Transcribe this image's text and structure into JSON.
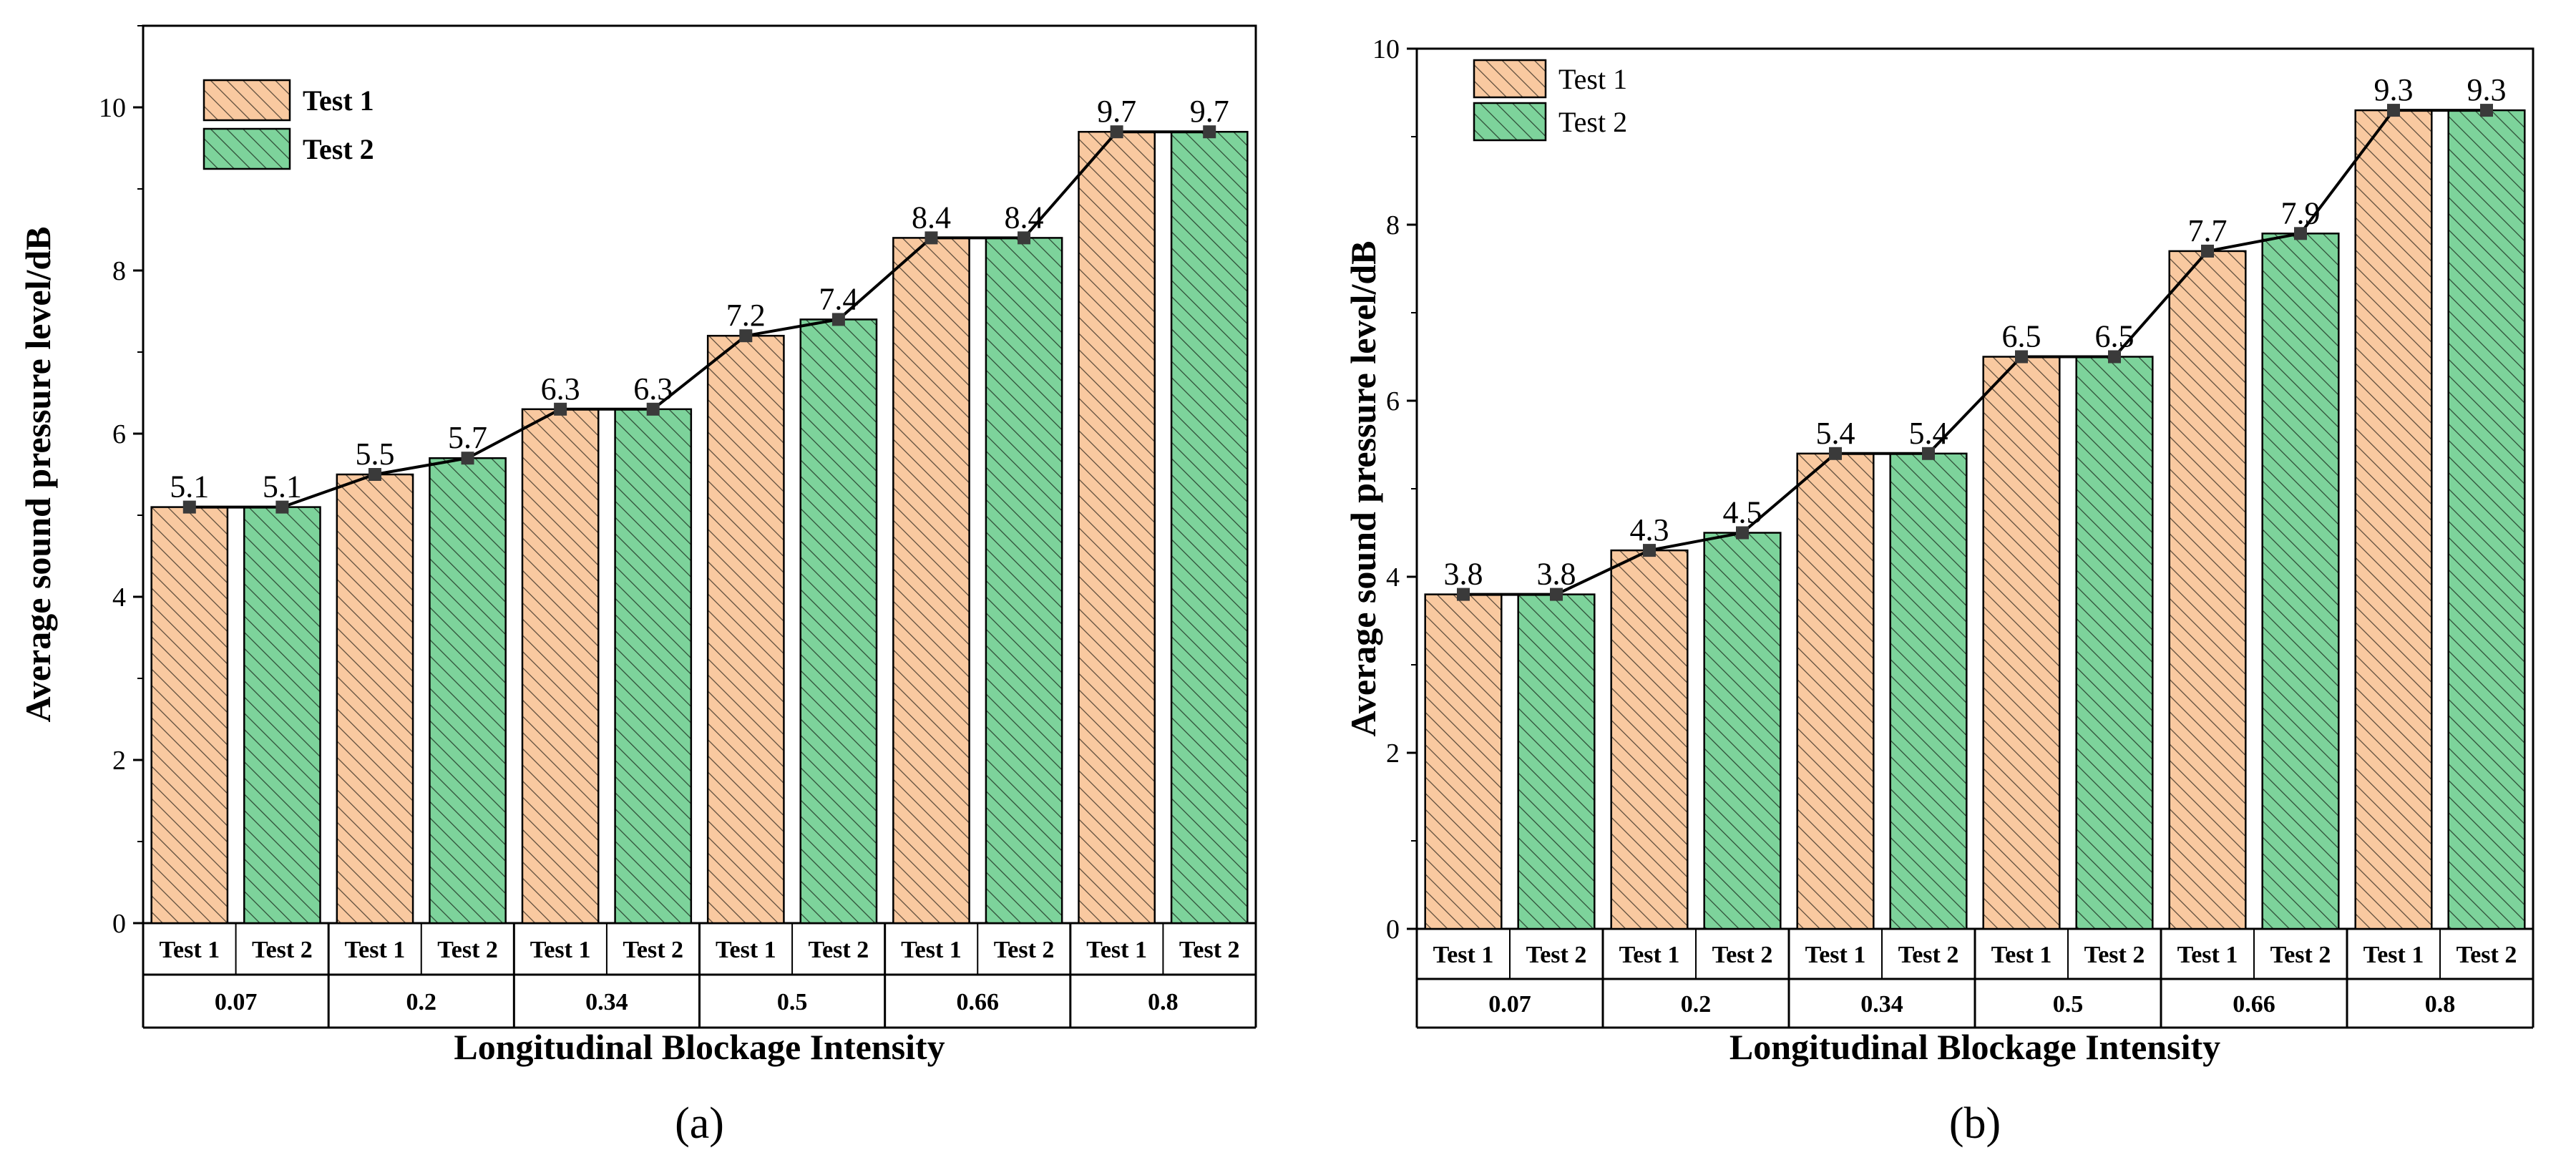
{
  "colors": {
    "test1_fill": "#f9c9a0",
    "test1_stroke": "#c9874c",
    "test2_fill": "#7dd39b",
    "test2_stroke": "#2f8f52",
    "trend": "#000000",
    "marker": "#3a3a3a"
  },
  "chart_data": [
    {
      "type": "bar",
      "panel_label": "(a)",
      "xlabel": "Longitudinal Blockage Intensity",
      "ylabel": "Average sound pressure level/dB",
      "categories": [
        "0.07",
        "0.2",
        "0.34",
        "0.5",
        "0.66",
        "0.8"
      ],
      "sub_labels": [
        "Test 1",
        "Test 2"
      ],
      "series": [
        {
          "name": "Test 1",
          "values": [
            5.1,
            5.5,
            6.3,
            7.2,
            8.4,
            9.7
          ]
        },
        {
          "name": "Test 2",
          "values": [
            5.1,
            5.7,
            6.3,
            7.4,
            8.4,
            9.7
          ]
        }
      ],
      "value_labels": {
        "Test 1": [
          "5.1",
          "5.5",
          "6.3",
          "7.2",
          "8.4",
          "9.7"
        ],
        "Test 2": [
          "5.1",
          "5.7",
          "6.3",
          "7.4",
          "8.4",
          "9.7"
        ]
      },
      "yticks": [
        0,
        2,
        4,
        6,
        8,
        10
      ],
      "ylim": [
        0,
        11
      ],
      "legend": [
        "Test 1",
        "Test 2"
      ],
      "legend_position": "top-left",
      "legend_bold": true
    },
    {
      "type": "bar",
      "panel_label": "(b)",
      "xlabel": "Longitudinal Blockage Intensity",
      "ylabel": "Average sound pressure level/dB",
      "categories": [
        "0.07",
        "0.2",
        "0.34",
        "0.5",
        "0.66",
        "0.8"
      ],
      "sub_labels": [
        "Test 1",
        "Test 2"
      ],
      "series": [
        {
          "name": "Test 1",
          "values": [
            3.8,
            4.3,
            5.4,
            6.5,
            7.7,
            9.3
          ]
        },
        {
          "name": "Test 2",
          "values": [
            3.8,
            4.5,
            5.4,
            6.5,
            7.9,
            9.3
          ]
        }
      ],
      "value_labels": {
        "Test 1": [
          "3.8",
          "4.3",
          "5.4",
          "6.5",
          "7.7",
          "9.3"
        ],
        "Test 2": [
          "3.8",
          "4.5",
          "5.4",
          "6.5",
          "7.9",
          "9.3"
        ]
      },
      "yticks": [
        0,
        2,
        4,
        6,
        8,
        10
      ],
      "ylim": [
        0,
        10
      ],
      "legend": [
        "Test 1",
        "Test 2"
      ],
      "legend_position": "top-left",
      "legend_bold": false
    }
  ]
}
